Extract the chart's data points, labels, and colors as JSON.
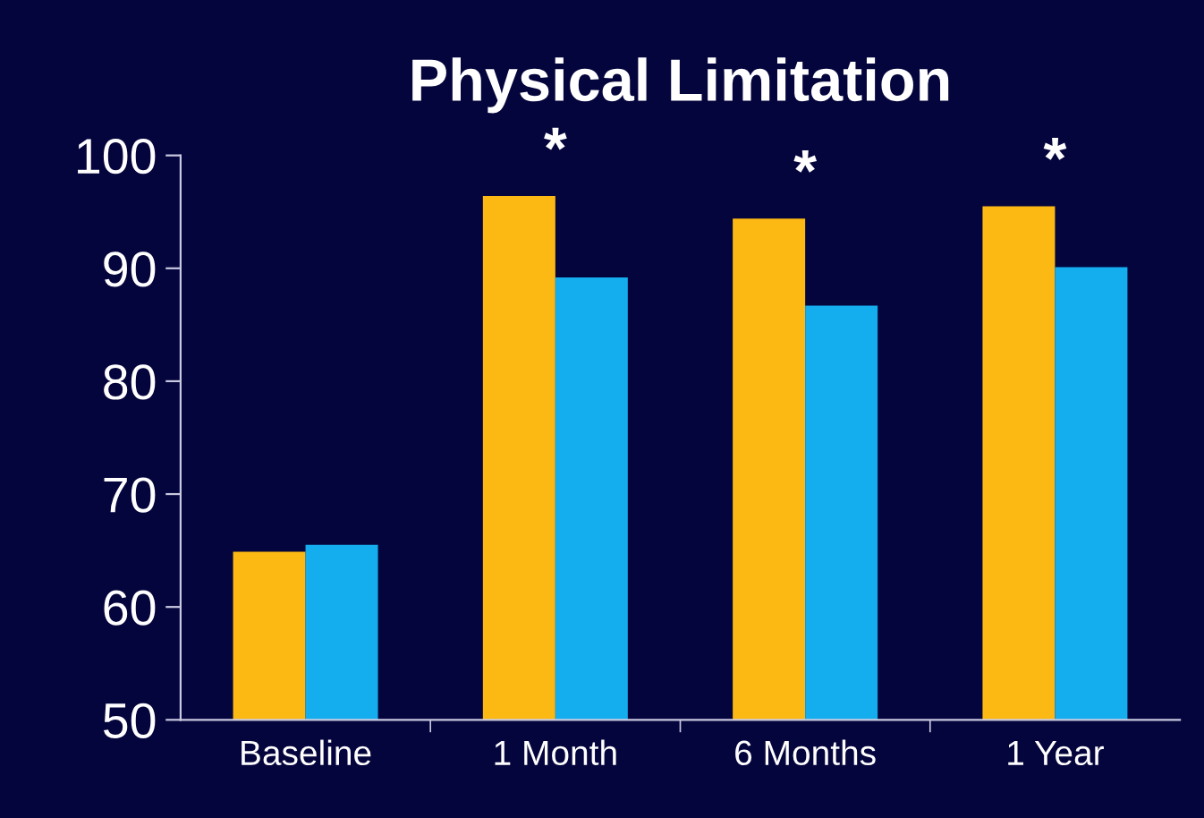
{
  "chart_data": {
    "type": "bar",
    "title": "Physical Limitation",
    "categories": [
      "Baseline",
      "1 Month",
      "6 Months",
      "1 Year"
    ],
    "series": [
      {
        "color": "#fdb913",
        "values": [
          64.9,
          96.4,
          94.4,
          95.5
        ]
      },
      {
        "color": "#14aeef",
        "values": [
          65.5,
          89.2,
          86.7,
          90.1
        ]
      }
    ],
    "ylim": [
      50,
      100
    ],
    "yticks": [
      50,
      60,
      70,
      80,
      90,
      100
    ],
    "grid": false,
    "legend": false,
    "annotations": [
      "*",
      "*",
      "*"
    ]
  }
}
